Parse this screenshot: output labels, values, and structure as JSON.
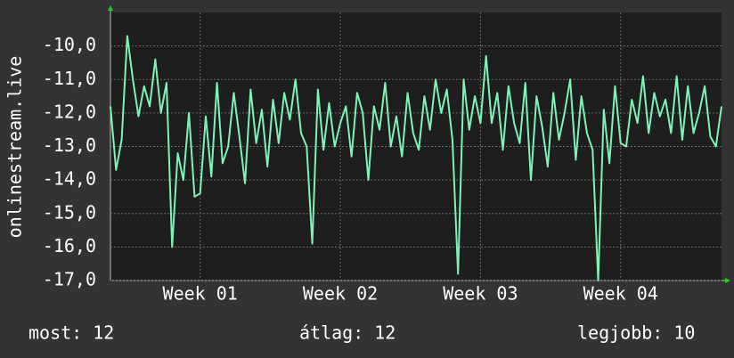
{
  "chart_data": {
    "type": "line",
    "y_label": "onlinestream.live",
    "color": "#7ff2b8",
    "grid": true,
    "xlim": [
      0.36,
      4.72
    ],
    "xticks": [
      {
        "value": 1,
        "label": "Week 01"
      },
      {
        "value": 2,
        "label": "Week 02"
      },
      {
        "value": 3,
        "label": "Week 03"
      },
      {
        "value": 4,
        "label": "Week 04"
      }
    ],
    "ylim": [
      -17,
      -9
    ],
    "yticks": [
      {
        "value": -17,
        "label": "-17,0"
      },
      {
        "value": -16,
        "label": "-16,0"
      },
      {
        "value": -15,
        "label": "-15,0"
      },
      {
        "value": -14,
        "label": "-14,0"
      },
      {
        "value": -13,
        "label": "-13,0"
      },
      {
        "value": -12,
        "label": "-12,0"
      },
      {
        "value": -11,
        "label": "-11,0"
      },
      {
        "value": -10,
        "label": "-10,0"
      }
    ],
    "x": [
      0.36,
      0.4,
      0.44,
      0.48,
      0.52,
      0.56,
      0.6,
      0.64,
      0.68,
      0.72,
      0.76,
      0.8,
      0.84,
      0.88,
      0.92,
      0.96,
      1,
      1.04,
      1.08,
      1.12,
      1.16,
      1.2,
      1.24,
      1.28,
      1.32,
      1.36,
      1.4,
      1.44,
      1.48,
      1.52,
      1.56,
      1.6,
      1.64,
      1.68,
      1.72,
      1.76,
      1.8,
      1.84,
      1.88,
      1.92,
      1.96,
      2,
      2.04,
      2.08,
      2.12,
      2.16,
      2.2,
      2.24,
      2.28,
      2.32,
      2.36,
      2.4,
      2.44,
      2.48,
      2.52,
      2.56,
      2.6,
      2.64,
      2.68,
      2.72,
      2.76,
      2.8,
      2.84,
      2.88,
      2.92,
      2.96,
      3,
      3.04,
      3.08,
      3.12,
      3.16,
      3.2,
      3.24,
      3.28,
      3.32,
      3.36,
      3.4,
      3.44,
      3.48,
      3.52,
      3.56,
      3.6,
      3.64,
      3.68,
      3.72,
      3.76,
      3.8,
      3.84,
      3.88,
      3.92,
      3.96,
      4,
      4.04,
      4.08,
      4.12,
      4.16,
      4.2,
      4.24,
      4.28,
      4.32,
      4.36,
      4.4,
      4.44,
      4.48,
      4.52,
      4.56,
      4.6,
      4.64,
      4.68,
      4.72
    ],
    "values": [
      -11.8,
      -13.7,
      -12.8,
      -9.7,
      -11.0,
      -12.1,
      -11.2,
      -11.8,
      -10.4,
      -12.0,
      -11.1,
      -16.0,
      -13.2,
      -14.0,
      -12.0,
      -14.5,
      -14.4,
      -12.1,
      -13.9,
      -11.1,
      -13.5,
      -13.0,
      -11.4,
      -12.7,
      -14.1,
      -11.3,
      -12.9,
      -11.9,
      -13.6,
      -11.6,
      -12.9,
      -11.4,
      -12.2,
      -11.0,
      -12.6,
      -13.0,
      -15.9,
      -11.3,
      -13.1,
      -11.7,
      -13.0,
      -12.3,
      -11.8,
      -13.3,
      -11.4,
      -12.0,
      -14.0,
      -11.8,
      -12.5,
      -11.1,
      -13.0,
      -12.1,
      -13.3,
      -11.4,
      -12.6,
      -13.1,
      -11.5,
      -12.5,
      -11.0,
      -12.0,
      -11.3,
      -12.8,
      -16.8,
      -11.0,
      -12.5,
      -11.5,
      -12.3,
      -10.3,
      -12.3,
      -11.4,
      -13.1,
      -11.2,
      -12.3,
      -12.9,
      -11.1,
      -14.0,
      -11.5,
      -12.4,
      -13.6,
      -11.4,
      -12.8,
      -12.0,
      -11.0,
      -13.4,
      -11.5,
      -12.6,
      -13.1,
      -17.0,
      -11.9,
      -13.5,
      -11.2,
      -12.9,
      -13.0,
      -11.6,
      -12.3,
      -10.9,
      -12.6,
      -11.4,
      -12.1,
      -11.6,
      -12.6,
      -10.9,
      -12.8,
      -11.2,
      -12.6,
      -12.0,
      -11.2,
      -12.7,
      -13.0,
      -11.8
    ],
    "stats": [
      {
        "label": "most:",
        "value": 12
      },
      {
        "label": "átlag:",
        "value": 12
      },
      {
        "label": "legjobb:",
        "value": 10
      }
    ]
  }
}
